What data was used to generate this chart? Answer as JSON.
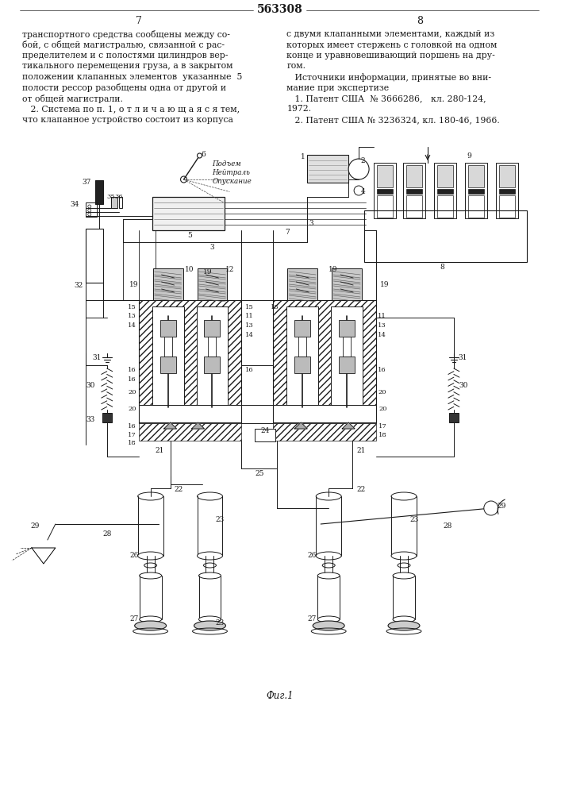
{
  "title": "563308",
  "page_left": "7",
  "page_right": "8",
  "background_color": "#ffffff",
  "text_color": "#1a1a1a",
  "left_col_text": [
    "транспортного средства сообщены между со-",
    "бой, с общей магистралью, связанной с рас-",
    "пределителем и с полостями цилиндров вер-",
    "тикального перемещения груза, а в закрытом",
    "положении клапанных элементов  указанные  5",
    "полости рессор разобщены одна от другой и",
    "от общей магистрали.",
    "   2. Система по п. 1, о т л и ч а ю щ а я с я тем,",
    "что клапанное устройство состоит из корпуса"
  ],
  "right_col_text": [
    "с двумя клапанными элементами, каждый из",
    "которых имеет стержень с головкой на одном",
    "конце и уравновешивающий поршень на дру-",
    "гом.",
    "   Источники информации, принятые во вни-",
    "мание при экспертизе",
    "   1. Патент США  № 3666286,   кл. 280-124,",
    "1972.",
    "   2. Патент США № 3236324, кл. 180-46, 1966."
  ],
  "caption": "Фиг.1"
}
